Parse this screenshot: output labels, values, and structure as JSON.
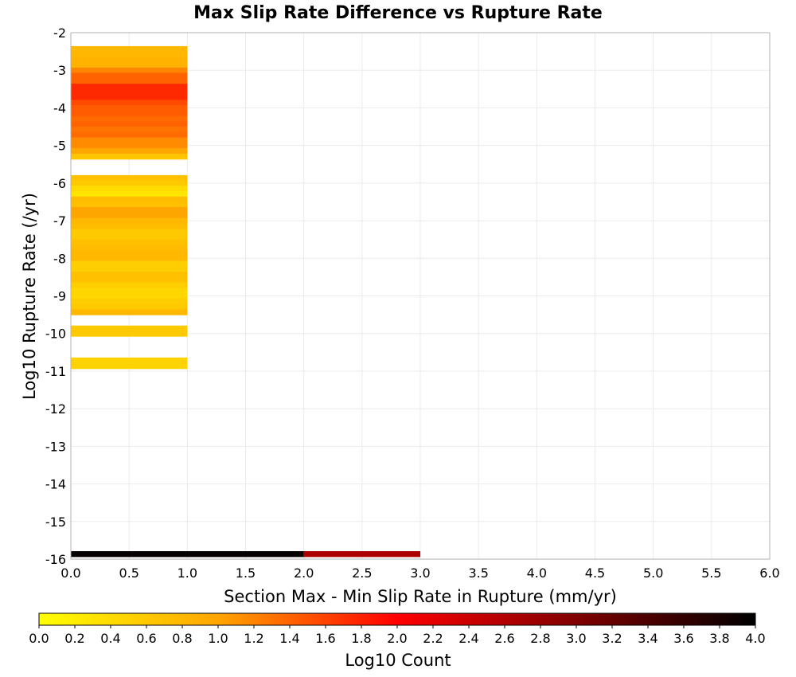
{
  "chart_data": {
    "type": "heatmap",
    "title": "Max Slip Rate Difference vs Rupture Rate",
    "xlabel": "Section Max - Min Slip Rate in Rupture (mm/yr)",
    "ylabel": "Log10 Rupture Rate (/yr)",
    "xlim": [
      0,
      6
    ],
    "ylim": [
      -16,
      -2
    ],
    "x_ticks": [
      "0.0",
      "0.5",
      "1.0",
      "1.5",
      "2.0",
      "2.5",
      "3.0",
      "3.5",
      "4.0",
      "4.5",
      "5.0",
      "5.5",
      "6.0"
    ],
    "y_ticks": [
      "-2",
      "-3",
      "-4",
      "-5",
      "-6",
      "-7",
      "-8",
      "-9",
      "-10",
      "-11",
      "-12",
      "-13",
      "-14",
      "-15",
      "-16"
    ],
    "grid": true,
    "cell_height": 0.142857,
    "cells": [
      {
        "x0": 0,
        "x1": 1,
        "y": -2.43,
        "value": 0.8
      },
      {
        "x0": 0,
        "x1": 1,
        "y": -2.57,
        "value": 0.8
      },
      {
        "x0": 0,
        "x1": 1,
        "y": -2.71,
        "value": 0.85
      },
      {
        "x0": 0,
        "x1": 1,
        "y": -2.86,
        "value": 0.85
      },
      {
        "x0": 0,
        "x1": 1,
        "y": -3.0,
        "value": 1.2
      },
      {
        "x0": 0,
        "x1": 1,
        "y": -3.14,
        "value": 1.4
      },
      {
        "x0": 0,
        "x1": 1,
        "y": -3.29,
        "value": 1.4
      },
      {
        "x0": 0,
        "x1": 1,
        "y": -3.43,
        "value": 1.75
      },
      {
        "x0": 0,
        "x1": 1,
        "y": -3.57,
        "value": 1.75
      },
      {
        "x0": 0,
        "x1": 1,
        "y": -3.71,
        "value": 1.75
      },
      {
        "x0": 0,
        "x1": 1,
        "y": -3.86,
        "value": 1.55
      },
      {
        "x0": 0,
        "x1": 1,
        "y": -4.0,
        "value": 1.45
      },
      {
        "x0": 0,
        "x1": 1,
        "y": -4.14,
        "value": 1.45
      },
      {
        "x0": 0,
        "x1": 1,
        "y": -4.29,
        "value": 1.35
      },
      {
        "x0": 0,
        "x1": 1,
        "y": -4.43,
        "value": 1.4
      },
      {
        "x0": 0,
        "x1": 1,
        "y": -4.57,
        "value": 1.3
      },
      {
        "x0": 0,
        "x1": 1,
        "y": -4.71,
        "value": 1.35
      },
      {
        "x0": 0,
        "x1": 1,
        "y": -4.86,
        "value": 1.15
      },
      {
        "x0": 0,
        "x1": 1,
        "y": -5.0,
        "value": 1.15
      },
      {
        "x0": 0,
        "x1": 1,
        "y": -5.14,
        "value": 1.0
      },
      {
        "x0": 0,
        "x1": 1,
        "y": -5.29,
        "value": 0.65
      },
      {
        "x0": 0,
        "x1": 1,
        "y": -5.86,
        "value": 0.7
      },
      {
        "x0": 0,
        "x1": 1,
        "y": -6.0,
        "value": 0.6
      },
      {
        "x0": 0,
        "x1": 1,
        "y": -6.14,
        "value": 0.4
      },
      {
        "x0": 0,
        "x1": 1,
        "y": -6.29,
        "value": 0.3
      },
      {
        "x0": 0,
        "x1": 1,
        "y": -6.43,
        "value": 0.75
      },
      {
        "x0": 0,
        "x1": 1,
        "y": -6.57,
        "value": 0.7
      },
      {
        "x0": 0,
        "x1": 1,
        "y": -6.71,
        "value": 1.0
      },
      {
        "x0": 0,
        "x1": 1,
        "y": -6.86,
        "value": 1.0
      },
      {
        "x0": 0,
        "x1": 1,
        "y": -7.0,
        "value": 0.8
      },
      {
        "x0": 0,
        "x1": 1,
        "y": -7.14,
        "value": 0.75
      },
      {
        "x0": 0,
        "x1": 1,
        "y": -7.29,
        "value": 0.6
      },
      {
        "x0": 0,
        "x1": 1,
        "y": -7.43,
        "value": 0.6
      },
      {
        "x0": 0,
        "x1": 1,
        "y": -7.57,
        "value": 0.7
      },
      {
        "x0": 0,
        "x1": 1,
        "y": -7.71,
        "value": 0.75
      },
      {
        "x0": 0,
        "x1": 1,
        "y": -7.86,
        "value": 0.8
      },
      {
        "x0": 0,
        "x1": 1,
        "y": -8.0,
        "value": 0.8
      },
      {
        "x0": 0,
        "x1": 1,
        "y": -8.14,
        "value": 0.55
      },
      {
        "x0": 0,
        "x1": 1,
        "y": -8.29,
        "value": 0.55
      },
      {
        "x0": 0,
        "x1": 1,
        "y": -8.43,
        "value": 0.7
      },
      {
        "x0": 0,
        "x1": 1,
        "y": -8.57,
        "value": 0.7
      },
      {
        "x0": 0,
        "x1": 1,
        "y": -8.71,
        "value": 0.55
      },
      {
        "x0": 0,
        "x1": 1,
        "y": -8.86,
        "value": 0.45
      },
      {
        "x0": 0,
        "x1": 1,
        "y": -9.0,
        "value": 0.45
      },
      {
        "x0": 0,
        "x1": 1,
        "y": -9.14,
        "value": 0.55
      },
      {
        "x0": 0,
        "x1": 1,
        "y": -9.29,
        "value": 0.6
      },
      {
        "x0": 0,
        "x1": 1,
        "y": -9.43,
        "value": 0.8
      },
      {
        "x0": 0,
        "x1": 1,
        "y": -9.86,
        "value": 0.6
      },
      {
        "x0": 0,
        "x1": 1,
        "y": -10.0,
        "value": 0.6
      },
      {
        "x0": 0,
        "x1": 1,
        "y": -10.71,
        "value": 0.5
      },
      {
        "x0": 0,
        "x1": 1,
        "y": -10.86,
        "value": 0.5
      },
      {
        "x0": 0,
        "x1": 2,
        "y": -15.86,
        "value": 3.95
      },
      {
        "x0": 2,
        "x1": 3,
        "y": -15.86,
        "value": 2.65
      }
    ],
    "colorbar": {
      "label": "Log10 Count",
      "min": 0,
      "max": 4,
      "ticks": [
        "0.0",
        "0.2",
        "0.4",
        "0.6",
        "0.8",
        "1.0",
        "1.2",
        "1.4",
        "1.6",
        "1.8",
        "2.0",
        "2.2",
        "2.4",
        "2.6",
        "2.8",
        "3.0",
        "3.2",
        "3.4",
        "3.6",
        "3.8",
        "4.0"
      ],
      "colors": [
        "#ffff00",
        "#ffa500",
        "#ff0000",
        "#800000",
        "#000000"
      ]
    }
  }
}
